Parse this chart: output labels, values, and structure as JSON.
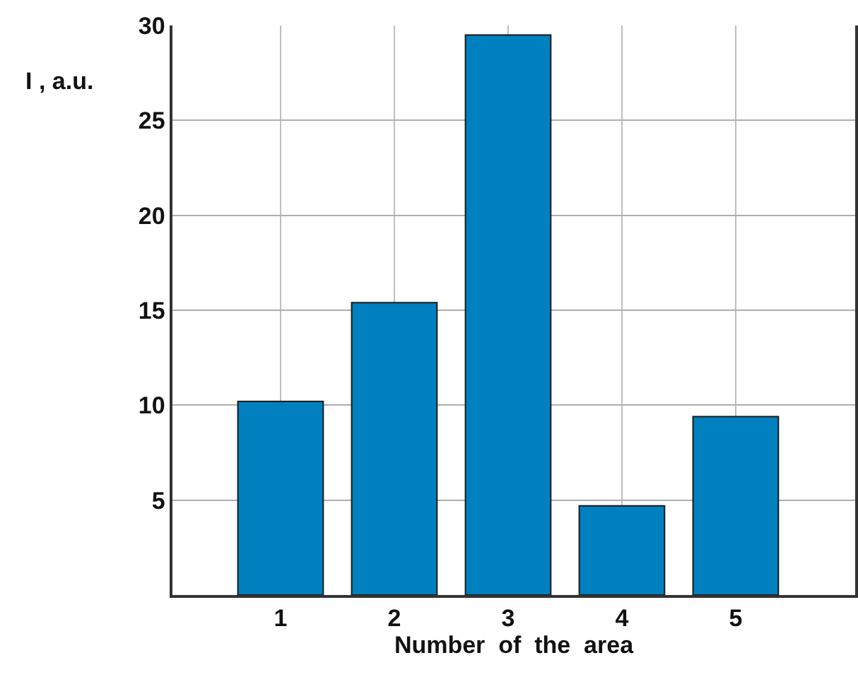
{
  "chart_data": {
    "type": "bar",
    "xlabel": "Number  of  the  area",
    "ylabel": "I , a.u.",
    "categories": [
      "1",
      "2",
      "3",
      "4",
      "5"
    ],
    "values": [
      10.2,
      15.4,
      29.5,
      4.7,
      9.4
    ],
    "color": "#0080bf",
    "ylim": [
      0,
      30
    ],
    "yticks": [
      5,
      10,
      15,
      20,
      25,
      30
    ],
    "grid": true
  }
}
